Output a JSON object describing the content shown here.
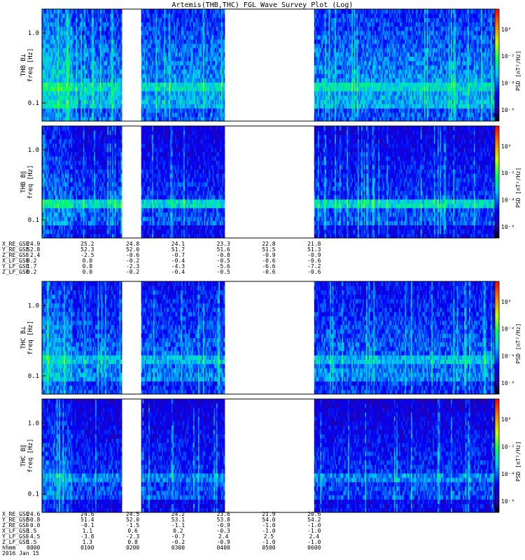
{
  "title": "Artemis(THB,THC) FGL Wave Survey Plot (Log)",
  "chart_data": {
    "type": "heatmap",
    "scale": "log",
    "yticks": [
      "1.0",
      "0.1"
    ],
    "yticks_values": [
      1.0,
      0.1
    ],
    "ylim": [
      0.055,
      2.2
    ],
    "colorbar": {
      "label": "PSD [nT²/Hz]",
      "ticks": [
        "10⁰",
        "10⁻²",
        "10⁻⁴",
        "10⁻⁶"
      ],
      "tick_values": [
        1,
        0.01,
        0.0001,
        1e-06
      ]
    },
    "data_gaps_hhmm": [
      [
        "0145",
        "0210"
      ],
      [
        "0400",
        "0600"
      ]
    ],
    "panels": [
      {
        "id": "thb-bperp",
        "probe": "THB",
        "label": "THB B⊥",
        "ylabel": "freq [Hz]",
        "level": 0.78
      },
      {
        "id": "thb-bpar",
        "probe": "THB",
        "label": "THB B∥",
        "ylabel": "freq [Hz]",
        "level": 0.62
      },
      {
        "id": "thc-bperp",
        "probe": "THC",
        "label": "THC B⊥",
        "ylabel": "freq [Hz]",
        "level": 0.7
      },
      {
        "id": "thc-bpar",
        "probe": "THC",
        "label": "THC B∥",
        "ylabel": "freq [Hz]",
        "level": 0.6
      }
    ],
    "ephemeris": [
      {
        "probe": "THB",
        "rows": [
          {
            "label": "X_RE_GSE",
            "values": [
              "24.9",
              "25.2",
              "24.8",
              "24.1",
              "23.3",
              "22.8",
              "21.8"
            ]
          },
          {
            "label": "Y_RE_GSE",
            "values": [
              "52.8",
              "52.3",
              "52.0",
              "51.7",
              "51.6",
              "51.5",
              "51.3"
            ]
          },
          {
            "label": "Z_RE_GSE",
            "values": [
              "-2.4",
              "-2.5",
              "-0.6",
              "-0.7",
              "-0.8",
              "-0.9",
              "-0.9"
            ]
          },
          {
            "label": "X_LF_GSE",
            "values": [
              "0.2",
              "0.0",
              "-0.2",
              "-0.4",
              "-0.5",
              "-0.6",
              "-0.6"
            ]
          },
          {
            "label": "Y_LF_GSE",
            "values": [
              "1.7",
              "0.8",
              "-2.3",
              "-4.3",
              "-5.6",
              "-6.6",
              "-7.2"
            ]
          },
          {
            "label": "Z_LF_GSE",
            "values": [
              "0.2",
              "0.0",
              "-0.2",
              "-0.4",
              "-0.5",
              "-0.6",
              "-0.6"
            ]
          }
        ]
      },
      {
        "probe": "THC",
        "rows": [
          {
            "label": "X_RE_GSE",
            "values": [
              "24.6",
              "24.6",
              "24.5",
              "24.2",
              "23.6",
              "21.9",
              "20.6"
            ]
          },
          {
            "label": "Y_RE_GSE",
            "values": [
              "50.8",
              "51.4",
              "52.0",
              "53.1",
              "53.8",
              "54.0",
              "54.2"
            ]
          },
          {
            "label": "Z_RE_GSE",
            "values": [
              "-0.0",
              "-0.1",
              "-1.5",
              "-1.1",
              "-0.9",
              "-1.0",
              "-1.0"
            ]
          },
          {
            "label": "X_LF_GSE",
            "values": [
              "1.5",
              "1.1",
              "0.6",
              "0.2",
              "-0.3",
              "-1.0",
              "-1.0"
            ]
          },
          {
            "label": "Y_LF_GSE",
            "values": [
              "-4.5",
              "-3.8",
              "-2.3",
              "-0.7",
              "2.4",
              "2.5",
              "2.4"
            ]
          },
          {
            "label": "Z_LF_GSE",
            "values": [
              "1.5",
              "1.3",
              "0.8",
              "-0.2",
              "-0.9",
              "-1.0",
              "-1.0"
            ]
          }
        ]
      }
    ],
    "time": {
      "label": "hhmm",
      "ticks": [
        "0000",
        "0100",
        "0200",
        "0300",
        "0400",
        "0500",
        "0600"
      ],
      "date": "2016 Jan 15"
    }
  }
}
